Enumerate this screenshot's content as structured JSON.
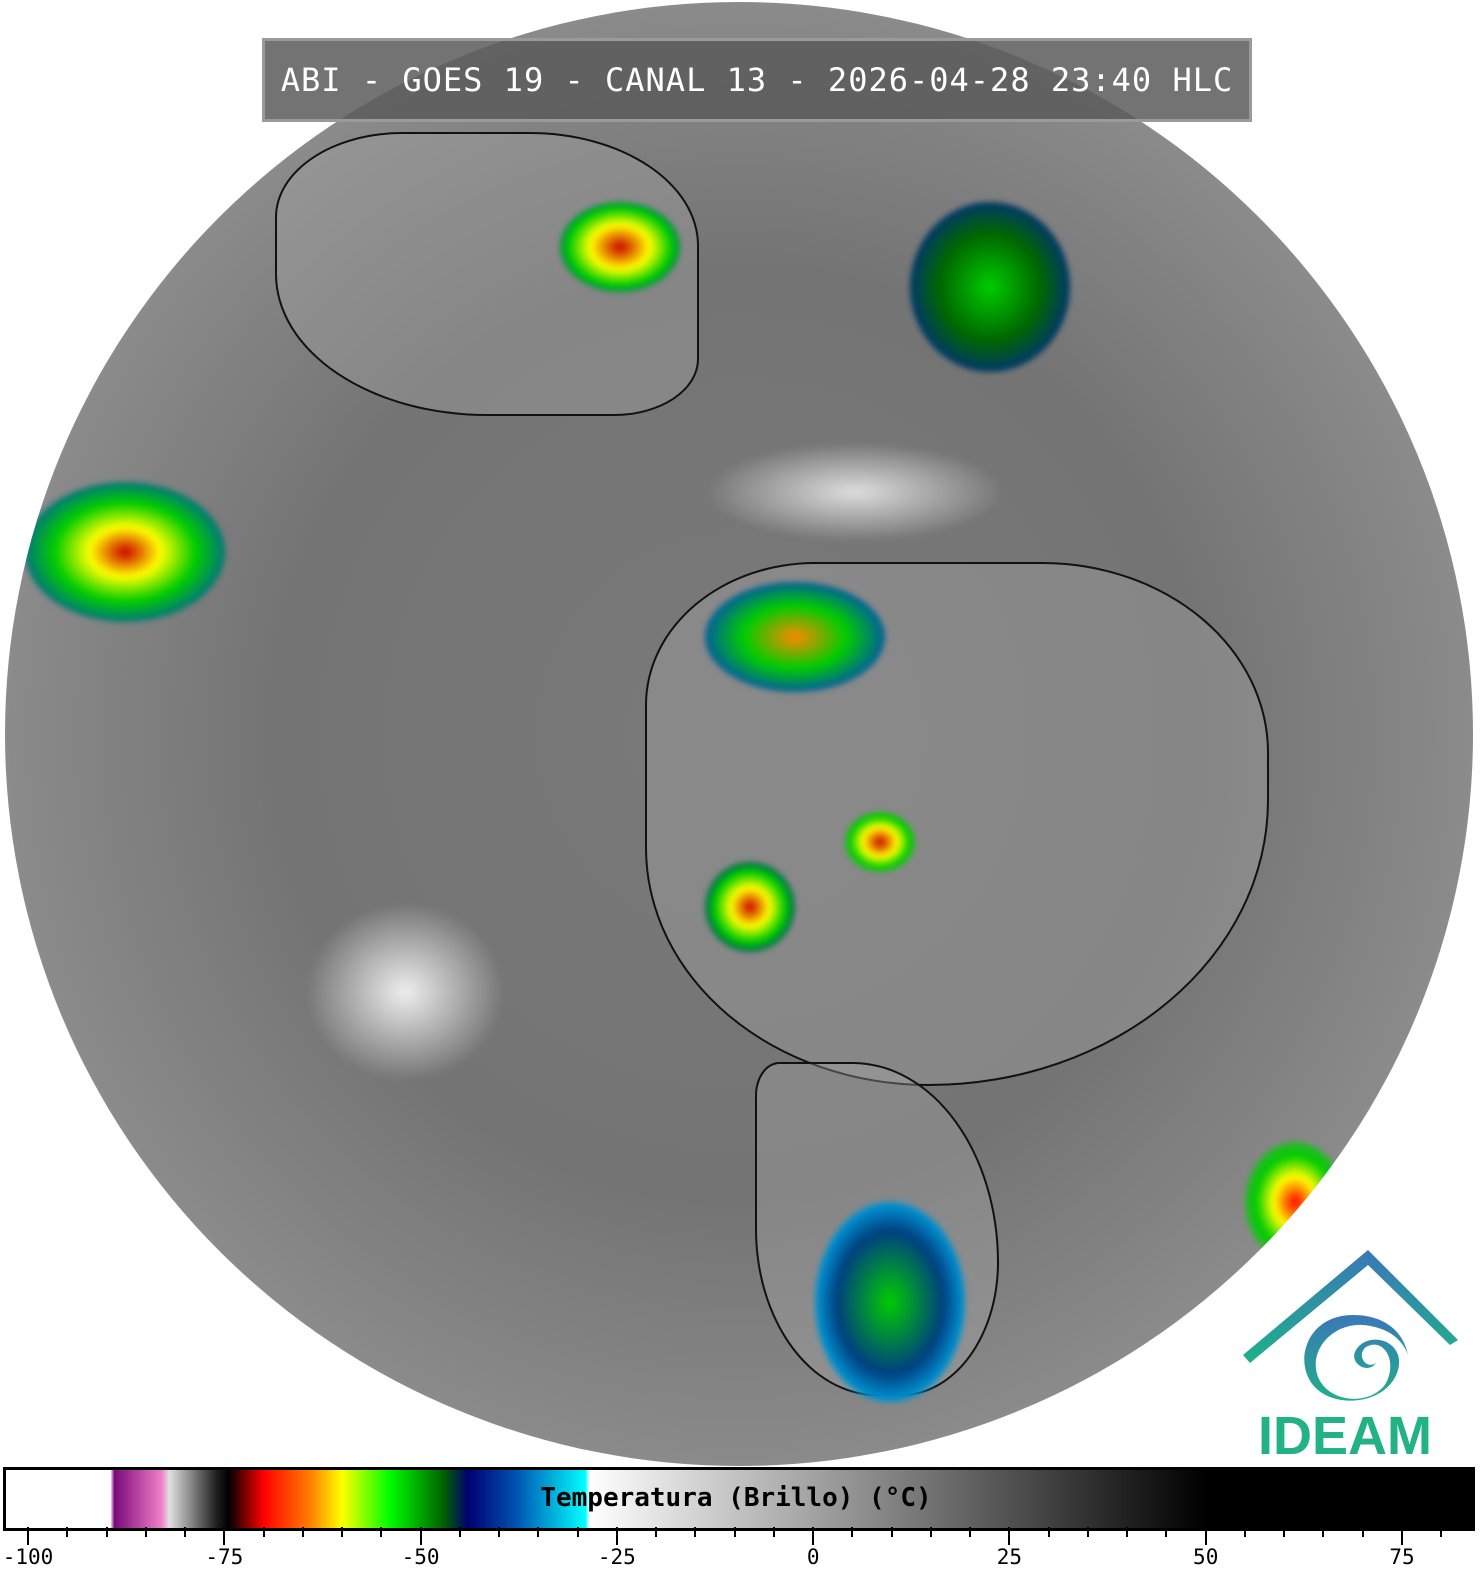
{
  "title": "ABI - GOES 19 - CANAL 13 - 2026-04-28 23:40 HLC",
  "logo": {
    "text": "IDEAM",
    "colors": {
      "roof": "#3a78b8",
      "swirl": "#1fa48c",
      "text": "#22b283"
    }
  },
  "colorbar": {
    "label": "Temperatura (Brillo) (°C)",
    "min": -100,
    "max": 75,
    "major_ticks": [
      -100,
      -75,
      -50,
      -25,
      0,
      25,
      50,
      75
    ],
    "tick_labels": [
      "-100",
      "-75",
      "-50",
      "-25",
      "0",
      "25",
      "50",
      "75"
    ],
    "minor_step": 5,
    "stops": [
      {
        "t": -103,
        "color": "#ffffff"
      },
      {
        "t": -89.5,
        "color": "#ffffff"
      },
      {
        "t": -89,
        "color": "#7a0a7a"
      },
      {
        "t": -83,
        "color": "#f07ec8"
      },
      {
        "t": -82,
        "color": "#e0e0e0"
      },
      {
        "t": -76,
        "color": "#202020"
      },
      {
        "t": -74.5,
        "color": "#000000"
      },
      {
        "t": -70,
        "color": "#ff0000"
      },
      {
        "t": -64,
        "color": "#ff8000"
      },
      {
        "t": -60,
        "color": "#ffff00"
      },
      {
        "t": -54,
        "color": "#00ff00"
      },
      {
        "t": -47,
        "color": "#006000"
      },
      {
        "t": -44,
        "color": "#000070"
      },
      {
        "t": -38,
        "color": "#0050b0"
      },
      {
        "t": -29,
        "color": "#00ffff"
      },
      {
        "t": -28.5,
        "color": "#ffffff"
      },
      {
        "t": 50,
        "color": "#000000"
      },
      {
        "t": 84,
        "color": "#000000"
      }
    ]
  }
}
